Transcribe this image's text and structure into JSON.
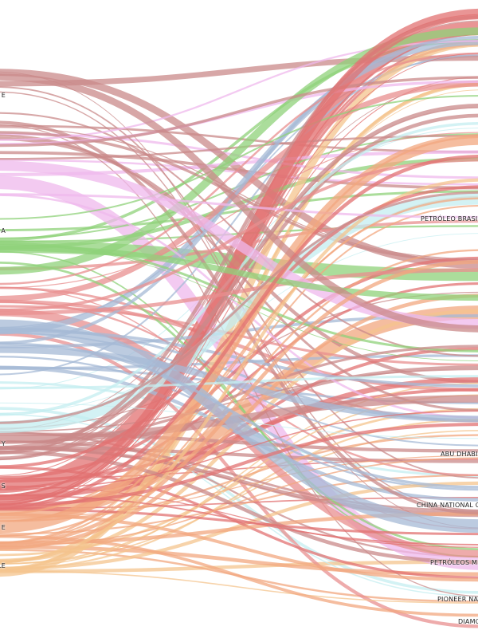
{
  "left_nodes": [
    {
      "label": "E",
      "color": "#c98989"
    },
    {
      "label": "",
      "color": "#efb8ec"
    },
    {
      "label": "A",
      "color": "#8fd17a"
    },
    {
      "label": "",
      "color": "#e88f8f"
    },
    {
      "label": "",
      "color": "#a5b9d6"
    },
    {
      "label": "",
      "color": "#c4eef0"
    },
    {
      "label": "Y",
      "color": "#c98989"
    },
    {
      "label": "S",
      "color": "#e27272"
    },
    {
      "label": "E",
      "color": "#f1a77f"
    },
    {
      "label": "LE",
      "color": "#f4c48d"
    }
  ],
  "right_nodes": [
    {
      "label": "PETRÓLEO BRASIL"
    },
    {
      "label": "ABU DHABI"
    },
    {
      "label": "CHINA NATIONAL O"
    },
    {
      "label": "PETRÓLEOS ME"
    },
    {
      "label": "PIONEER NAT"
    },
    {
      "label": "DIAMO"
    }
  ]
}
